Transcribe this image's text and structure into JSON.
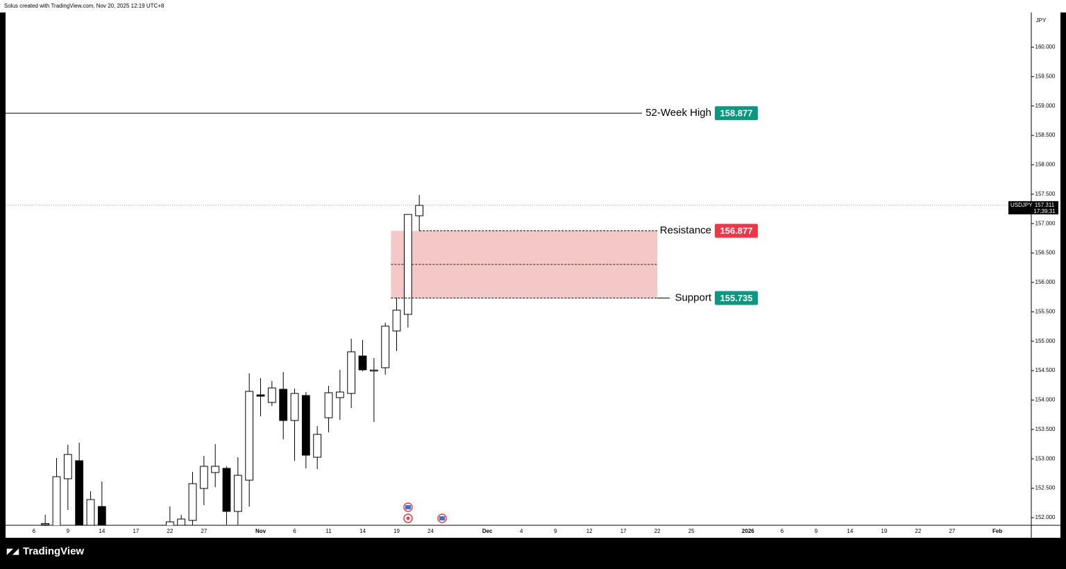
{
  "header": {
    "text": "Solus created with TradingView.com, Nov 20, 2025 12:19 UTC+8"
  },
  "footer": {
    "brand": "TradingView"
  },
  "chart_data": {
    "type": "candlestick",
    "watermark": "USDJPY, 1D",
    "currency": "JPY",
    "categories": [
      null,
      null,
      "6",
      null,
      null,
      "9",
      null,
      null,
      "14",
      null,
      null,
      "17",
      null,
      null,
      "22",
      null,
      null,
      "27",
      null,
      null,
      null,
      null,
      "Nov",
      null,
      null,
      "6",
      null,
      null,
      "11",
      null,
      null,
      "14",
      null,
      null,
      "19",
      null,
      null,
      "24",
      null,
      null,
      null,
      null,
      "Dec",
      null,
      null,
      "4",
      null,
      null,
      "9",
      null,
      null,
      "12",
      null,
      null,
      "17",
      null,
      null,
      "22",
      null,
      null,
      "25",
      null,
      null,
      null,
      null,
      "2026",
      null,
      null,
      "6",
      null,
      null,
      "9",
      null,
      null,
      "14",
      null,
      null,
      "19",
      null,
      null,
      "22",
      null,
      null,
      "27",
      null,
      null,
      null,
      "Feb",
      null,
      null
    ],
    "open": [
      null,
      null,
      null,
      151.88,
      151.85,
      152.661,
      152.968,
      151.87,
      152.189,
      null,
      null,
      null,
      null,
      null,
      151.86,
      151.87,
      151.953,
      152.496,
      152.767,
      152.838,
      152.106,
      152.637,
      154.088,
      153.959,
      154.183,
      153.652,
      154.077,
      153.027,
      153.699,
      154.041,
      154.112,
      154.749,
      154.5,
      154.549,
      155.174,
      155.457,
      157.133,
      null,
      null,
      null,
      null,
      null,
      null,
      null,
      null,
      null,
      null,
      null,
      null,
      null,
      null,
      null,
      null,
      null,
      null,
      null,
      null,
      null,
      null,
      null,
      null,
      null,
      null,
      null,
      null,
      null,
      null,
      null,
      null,
      null,
      null,
      null,
      null,
      null,
      null,
      null,
      null,
      null,
      null,
      null,
      null,
      null,
      null,
      null,
      null,
      null,
      null,
      null,
      null,
      null
    ],
    "high": [
      null,
      null,
      null,
      152.05,
      153.015,
      153.239,
      153.274,
      152.448,
      152.614,
      null,
      null,
      null,
      null,
      null,
      152.189,
      152.05,
      152.779,
      153.05,
      153.251,
      152.873,
      153.027,
      154.454,
      154.372,
      154.324,
      154.478,
      154.195,
      154.136,
      153.558,
      154.242,
      154.513,
      155.044,
      155.021,
      154.714,
      155.316,
      155.74,
      157.16,
      157.487,
      null,
      null,
      null,
      null,
      null,
      null,
      null,
      null,
      null,
      null,
      null,
      null,
      null,
      null,
      null,
      null,
      null,
      null,
      null,
      null,
      null,
      null,
      null,
      null,
      null,
      null,
      null,
      null,
      null,
      null,
      null,
      null,
      null,
      null,
      null,
      null,
      null,
      null,
      null,
      null,
      null,
      null,
      null,
      null,
      null,
      null,
      null,
      null,
      null,
      null,
      null,
      null,
      null
    ],
    "low": [
      null,
      null,
      null,
      151.7,
      151.7,
      152.13,
      151.7,
      151.75,
      151.7,
      null,
      null,
      null,
      null,
      null,
      151.8,
      151.8,
      151.85,
      152.212,
      152.519,
      151.88,
      151.88,
      152.189,
      153.723,
      153.9,
      153.333,
      152.968,
      152.838,
      152.826,
      153.451,
      153.664,
      153.864,
      154.49,
      153.628,
      154.431,
      154.832,
      155.233,
      156.873,
      null,
      null,
      null,
      null,
      null,
      null,
      null,
      null,
      null,
      null,
      null,
      null,
      null,
      null,
      null,
      null,
      null,
      null,
      null,
      null,
      null,
      null,
      null,
      null,
      null,
      null,
      null,
      null,
      null,
      null,
      null,
      null,
      null,
      null,
      null,
      null,
      null,
      null,
      null,
      null,
      null,
      null,
      null,
      null,
      null,
      null,
      null,
      null,
      null,
      null,
      null,
      null,
      null
    ],
    "close": [
      null,
      null,
      null,
      151.9,
      152.696,
      153.074,
      151.85,
      152.307,
      151.85,
      null,
      null,
      null,
      null,
      null,
      151.929,
      151.976,
      152.578,
      152.873,
      152.873,
      152.106,
      152.72,
      154.147,
      154.065,
      154.206,
      153.652,
      154.112,
      153.062,
      153.416,
      154.124,
      154.136,
      154.82,
      154.513,
      154.51,
      155.257,
      155.528,
      157.156,
      157.31,
      null,
      null,
      null,
      null,
      null,
      null,
      null,
      null,
      null,
      null,
      null,
      null,
      null,
      null,
      null,
      null,
      null,
      null,
      null,
      null,
      null,
      null,
      null,
      null,
      null,
      null,
      null,
      null,
      null,
      null,
      null,
      null,
      null,
      null,
      null,
      null,
      null,
      null,
      null,
      null,
      null,
      null,
      null,
      null,
      null,
      null,
      null,
      null,
      null,
      null,
      null,
      null,
      null
    ],
    "up_color": "#ffffff",
    "down_color": "#000000",
    "ylim": [
      151.87,
      160.59
    ],
    "yticks": [
      {
        "value": 152,
        "label": "152.000"
      },
      {
        "value": 152.5,
        "label": "152.500"
      },
      {
        "value": 153,
        "label": "153.000"
      },
      {
        "value": 153.5,
        "label": "153.500"
      },
      {
        "value": 154,
        "label": "154.000"
      },
      {
        "value": 154.5,
        "label": "154.500"
      },
      {
        "value": 155,
        "label": "155.000"
      },
      {
        "value": 155.5,
        "label": "155.500"
      },
      {
        "value": 156,
        "label": "156.000"
      },
      {
        "value": 156.5,
        "label": "156.500"
      },
      {
        "value": 157,
        "label": "157.000"
      },
      {
        "value": 157.5,
        "label": "157.500"
      },
      {
        "value": 158,
        "label": "158.000"
      },
      {
        "value": 158.5,
        "label": "158.500"
      },
      {
        "value": 159,
        "label": "159.000"
      },
      {
        "value": 159.5,
        "label": "159.500"
      },
      {
        "value": 160,
        "label": "160.000"
      }
    ],
    "last_price": {
      "symbol": "USDJPY",
      "value": 157.311,
      "countdown": "17:39:31"
    },
    "levels": [
      {
        "name": "52-Week High",
        "value": 158.877,
        "color": "#089981"
      },
      {
        "name": "Resistance",
        "value": 156.877,
        "color": "#f23645"
      },
      {
        "name": "Support",
        "value": 155.735,
        "color": "#089981"
      }
    ],
    "zone_color": "#f5c8c8"
  }
}
